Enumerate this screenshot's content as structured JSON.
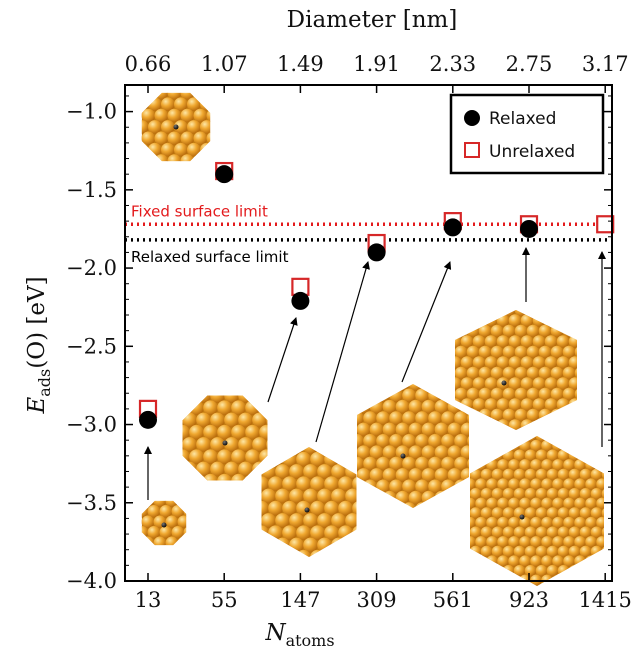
{
  "chart_data": {
    "type": "scatter",
    "x_label": "N",
    "x_label_sub": "atoms",
    "y_label": "E",
    "y_label_sub": "ads",
    "y_label_tail": "(O) [eV]",
    "x_top_label": "Diameter [nm]",
    "categories": [
      "13",
      "55",
      "147",
      "309",
      "561",
      "923",
      "1415"
    ],
    "top_ticks": [
      "0.66",
      "1.07",
      "1.49",
      "1.91",
      "2.33",
      "2.75",
      "3.17"
    ],
    "y_ticks": [
      "−1.0",
      "−1.5",
      "−2.0",
      "−2.5",
      "−3.0",
      "−3.5",
      "−4.0"
    ],
    "y_tick_values": [
      -1.0,
      -1.5,
      -2.0,
      -2.5,
      -3.0,
      -3.5,
      -4.0
    ],
    "ylim": [
      -4.0,
      -0.83
    ],
    "series": [
      {
        "name": "Relaxed",
        "marker": "filled-circle",
        "color": "#000000",
        "values": [
          -2.97,
          -1.4,
          -2.21,
          -1.9,
          -1.74,
          -1.75,
          null
        ]
      },
      {
        "name": "Unrelaxed",
        "marker": "open-square",
        "color": "#d62728",
        "values": [
          -2.9,
          -1.38,
          -2.12,
          -1.84,
          -1.7,
          -1.72,
          -1.72
        ]
      }
    ],
    "reference_lines": [
      {
        "label": "Fixed surface limit",
        "value": -1.72,
        "color": "#e31a1c",
        "style": "dotted"
      },
      {
        "label": "Relaxed surface limit",
        "value": -1.82,
        "color": "#000000",
        "style": "dotted"
      }
    ],
    "legend_position": "top-right",
    "cluster_insets": [
      {
        "n_index": 0,
        "shape": "small",
        "color": "#e59d22"
      },
      {
        "n_index": 1,
        "shape": "small",
        "color": "#e59d22"
      },
      {
        "n_index": 2,
        "shape": "cuboct",
        "color": "#e59d22"
      },
      {
        "n_index": 3,
        "shape": "cuboct",
        "color": "#e59d22"
      },
      {
        "n_index": 4,
        "shape": "hex",
        "color": "#e59d22"
      },
      {
        "n_index": 5,
        "shape": "hex",
        "color": "#e59d22"
      },
      {
        "n_index": 6,
        "shape": "hex",
        "color": "#e59d22"
      }
    ]
  }
}
